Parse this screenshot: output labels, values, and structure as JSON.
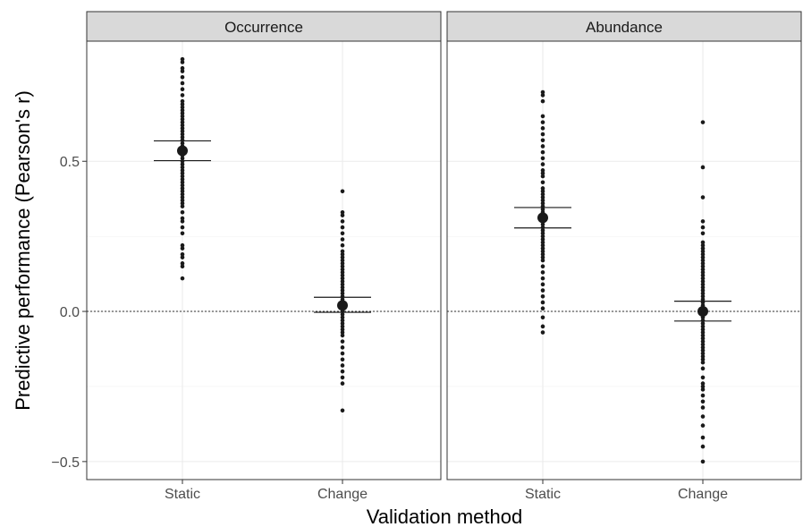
{
  "chart_data": {
    "type": "scatter",
    "xlabel": "Validation method",
    "ylabel": "Predictive performance (Pearson's r)",
    "ylim": [
      -0.56,
      0.9
    ],
    "y_ticks": [
      -0.5,
      0.0,
      0.5
    ],
    "y_tick_labels": [
      "−0.5",
      "0.0",
      "0.5"
    ],
    "categories": [
      "Static",
      "Change"
    ],
    "reference_line_y": 0,
    "grid": true,
    "colors": {
      "points": "#1a1a1a",
      "strip_bg": "#d9d9d9",
      "grid": "#ebebeb",
      "panel_border": "#333333"
    },
    "panels": [
      {
        "title": "Occurrence",
        "groups": [
          {
            "category": "Static",
            "mean": 0.535,
            "lower": 0.502,
            "upper": 0.568,
            "points": [
              0.11,
              0.15,
              0.16,
              0.18,
              0.19,
              0.21,
              0.22,
              0.26,
              0.28,
              0.3,
              0.31,
              0.33,
              0.35,
              0.36,
              0.37,
              0.38,
              0.39,
              0.4,
              0.41,
              0.42,
              0.43,
              0.44,
              0.45,
              0.46,
              0.47,
              0.48,
              0.49,
              0.5,
              0.51,
              0.52,
              0.53,
              0.54,
              0.55,
              0.56,
              0.57,
              0.58,
              0.59,
              0.6,
              0.61,
              0.62,
              0.63,
              0.64,
              0.65,
              0.66,
              0.67,
              0.68,
              0.69,
              0.7,
              0.72,
              0.74,
              0.76,
              0.78,
              0.8,
              0.81,
              0.83,
              0.84
            ]
          },
          {
            "category": "Change",
            "mean": 0.02,
            "lower": -0.003,
            "upper": 0.047,
            "points": [
              -0.33,
              -0.24,
              -0.22,
              -0.2,
              -0.18,
              -0.16,
              -0.14,
              -0.12,
              -0.1,
              -0.08,
              -0.07,
              -0.06,
              -0.05,
              -0.04,
              -0.03,
              -0.02,
              -0.01,
              0.0,
              0.01,
              0.02,
              0.03,
              0.04,
              0.05,
              0.06,
              0.07,
              0.08,
              0.09,
              0.1,
              0.11,
              0.12,
              0.13,
              0.14,
              0.15,
              0.16,
              0.17,
              0.18,
              0.19,
              0.2,
              0.22,
              0.24,
              0.26,
              0.28,
              0.3,
              0.32,
              0.33,
              0.4
            ]
          }
        ]
      },
      {
        "title": "Abundance",
        "groups": [
          {
            "category": "Static",
            "mean": 0.312,
            "lower": 0.278,
            "upper": 0.346,
            "points": [
              -0.07,
              -0.05,
              -0.02,
              0.01,
              0.03,
              0.05,
              0.07,
              0.09,
              0.11,
              0.13,
              0.15,
              0.17,
              0.18,
              0.19,
              0.2,
              0.21,
              0.22,
              0.23,
              0.24,
              0.25,
              0.26,
              0.27,
              0.28,
              0.29,
              0.3,
              0.31,
              0.32,
              0.33,
              0.34,
              0.35,
              0.36,
              0.37,
              0.38,
              0.39,
              0.4,
              0.41,
              0.43,
              0.45,
              0.46,
              0.47,
              0.49,
              0.51,
              0.53,
              0.55,
              0.57,
              0.59,
              0.61,
              0.63,
              0.65,
              0.7,
              0.72,
              0.73
            ]
          },
          {
            "category": "Change",
            "mean": 0.0,
            "lower": -0.032,
            "upper": 0.034,
            "points": [
              -0.5,
              -0.45,
              -0.42,
              -0.38,
              -0.35,
              -0.32,
              -0.3,
              -0.28,
              -0.26,
              -0.25,
              -0.24,
              -0.22,
              -0.19,
              -0.17,
              -0.16,
              -0.15,
              -0.14,
              -0.13,
              -0.12,
              -0.11,
              -0.1,
              -0.09,
              -0.08,
              -0.07,
              -0.06,
              -0.05,
              -0.04,
              -0.03,
              -0.02,
              -0.01,
              0.0,
              0.01,
              0.02,
              0.03,
              0.04,
              0.05,
              0.06,
              0.07,
              0.08,
              0.09,
              0.1,
              0.11,
              0.12,
              0.13,
              0.14,
              0.15,
              0.16,
              0.17,
              0.18,
              0.19,
              0.2,
              0.21,
              0.22,
              0.23,
              0.26,
              0.28,
              0.3,
              0.38,
              0.48,
              0.63
            ]
          }
        ]
      }
    ]
  }
}
